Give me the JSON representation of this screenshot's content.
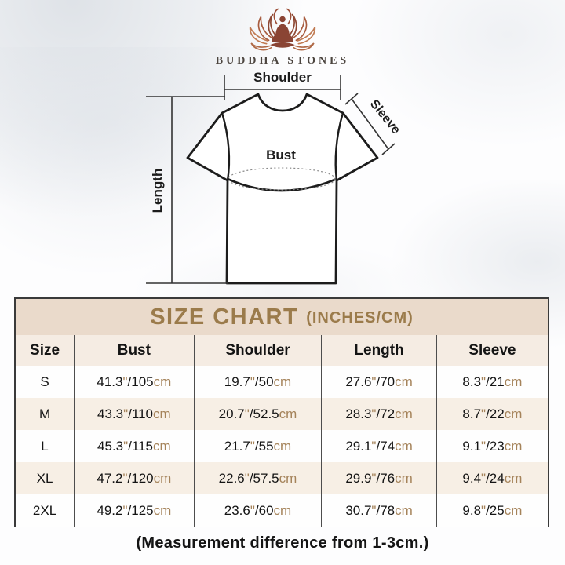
{
  "brand": {
    "name": "BUDDHA STONES"
  },
  "diagram": {
    "shoulder_label": "Shoulder",
    "sleeve_label": "Sleeve",
    "bust_label": "Bust",
    "length_label": "Length"
  },
  "size_chart": {
    "title": "SIZE CHART",
    "units_suffix": "(INCHES/CM)",
    "columns": [
      "Size",
      "Bust",
      "Shoulder",
      "Length",
      "Sleeve"
    ],
    "rows": [
      {
        "size": "S",
        "bust": {
          "in": "41.3",
          "cm": "105"
        },
        "shoulder": {
          "in": "19.7",
          "cm": "50"
        },
        "length": {
          "in": "27.6",
          "cm": "70"
        },
        "sleeve": {
          "in": "8.3",
          "cm": "21"
        }
      },
      {
        "size": "M",
        "bust": {
          "in": "43.3",
          "cm": "110"
        },
        "shoulder": {
          "in": "20.7",
          "cm": "52.5"
        },
        "length": {
          "in": "28.3",
          "cm": "72"
        },
        "sleeve": {
          "in": "8.7",
          "cm": "22"
        }
      },
      {
        "size": "L",
        "bust": {
          "in": "45.3",
          "cm": "115"
        },
        "shoulder": {
          "in": "21.7",
          "cm": "55"
        },
        "length": {
          "in": "29.1",
          "cm": "74"
        },
        "sleeve": {
          "in": "9.1",
          "cm": "23"
        }
      },
      {
        "size": "XL",
        "bust": {
          "in": "47.2",
          "cm": "120"
        },
        "shoulder": {
          "in": "22.6",
          "cm": "57.5"
        },
        "length": {
          "in": "29.9",
          "cm": "76"
        },
        "sleeve": {
          "in": "9.4",
          "cm": "24"
        }
      },
      {
        "size": "2XL",
        "bust": {
          "in": "49.2",
          "cm": "125"
        },
        "shoulder": {
          "in": "23.6",
          "cm": "60"
        },
        "length": {
          "in": "30.7",
          "cm": "78"
        },
        "sleeve": {
          "in": "9.8",
          "cm": "25"
        }
      }
    ]
  },
  "chart_data": {
    "type": "table",
    "title": "SIZE CHART (INCHES/CM)",
    "columns": [
      "Size",
      "Bust",
      "Shoulder",
      "Length",
      "Sleeve"
    ],
    "rows": [
      [
        "S",
        "41.3\"/105cm",
        "19.7\"/50cm",
        "27.6\"/70cm",
        "8.3\"/21cm"
      ],
      [
        "M",
        "43.3\"/110cm",
        "20.7\"/52.5cm",
        "28.3\"/72cm",
        "8.7\"/22cm"
      ],
      [
        "L",
        "45.3\"/115cm",
        "21.7\"/55cm",
        "29.1\"/74cm",
        "9.1\"/23cm"
      ],
      [
        "XL",
        "47.2\"/120cm",
        "22.6\"/57.5cm",
        "29.9\"/76cm",
        "9.4\"/24cm"
      ],
      [
        "2XL",
        "49.2\"/125cm",
        "23.6\"/60cm",
        "30.7\"/78cm",
        "9.8\"/25cm"
      ]
    ]
  },
  "footer": {
    "note": "(Measurement difference from 1-3cm.)"
  },
  "colors": {
    "accent_gold": "#9B7B4B",
    "unit_tan": "#A5835A",
    "banner_bg": "#EADACB",
    "header_row_bg": "#F5ECE3",
    "row_alt_bg": "#F7EFE5",
    "table_border": "#3A3A3A",
    "logo_maroon": "#8A4434",
    "logo_copper": "#C07A52",
    "text_black": "#141414"
  }
}
